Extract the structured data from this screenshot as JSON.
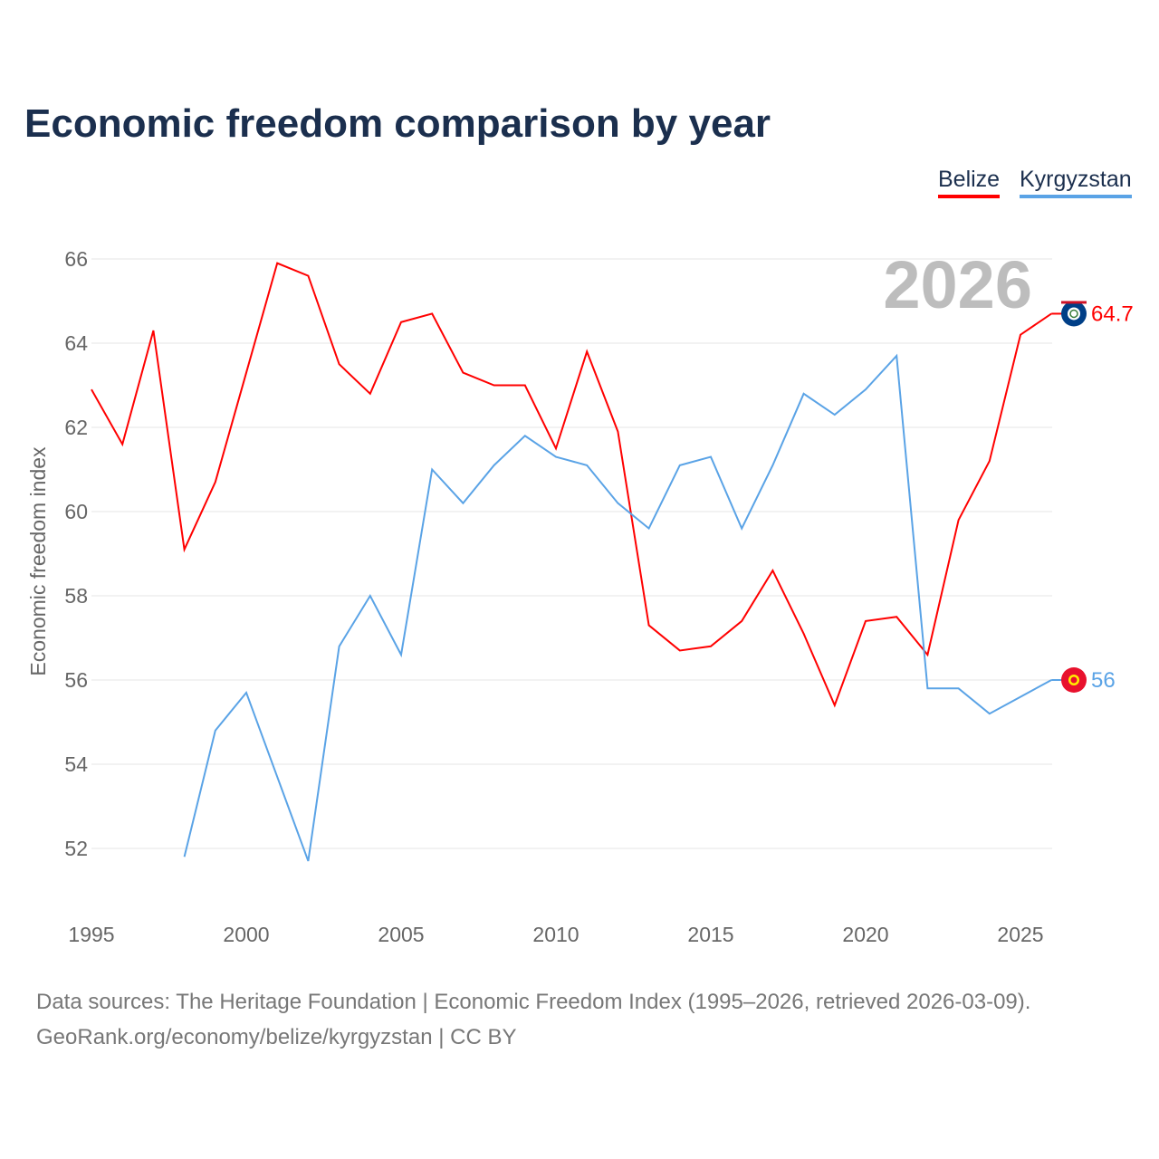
{
  "title": "Economic freedom comparison by year",
  "year_label": "2026",
  "footer": {
    "line1": "Data sources: The Heritage Foundation | Economic Freedom Index (1995–2026, retrieved 2026-03-09).",
    "line2": "GeoRank.org/economy/belize/kyrgyzstan | CC BY"
  },
  "chart_data": {
    "type": "line",
    "title": "Economic freedom comparison by year",
    "xlabel": "",
    "ylabel": "Economic freedom index",
    "xlim": [
      1995,
      2026
    ],
    "ylim": [
      50.8,
      67
    ],
    "xticks": [
      1995,
      2000,
      2005,
      2010,
      2015,
      2020,
      2025
    ],
    "yticks": [
      52,
      54,
      56,
      58,
      60,
      62,
      64,
      66
    ],
    "grid": true,
    "legend_position": "top-right",
    "series": [
      {
        "name": "Belize",
        "color": "#ff0000",
        "end_label": "64.7",
        "x": [
          1995,
          1996,
          1997,
          1998,
          1999,
          2000,
          2001,
          2002,
          2003,
          2004,
          2005,
          2006,
          2007,
          2008,
          2009,
          2010,
          2011,
          2012,
          2013,
          2014,
          2015,
          2016,
          2017,
          2018,
          2019,
          2020,
          2021,
          2022,
          2023,
          2024,
          2025,
          2026
        ],
        "values": [
          62.9,
          61.6,
          64.3,
          59.1,
          60.7,
          63.3,
          65.9,
          65.6,
          63.5,
          62.8,
          64.5,
          64.7,
          63.3,
          63.0,
          63.0,
          61.5,
          63.8,
          61.9,
          57.3,
          56.7,
          56.8,
          57.4,
          58.6,
          57.1,
          55.4,
          57.4,
          57.5,
          56.6,
          59.8,
          61.2,
          64.2,
          64.7
        ]
      },
      {
        "name": "Kyrgyzstan",
        "color": "#5aa3e6",
        "end_label": "56",
        "x": [
          1998,
          1999,
          2000,
          2001,
          2002,
          2003,
          2004,
          2005,
          2006,
          2007,
          2008,
          2009,
          2010,
          2011,
          2012,
          2013,
          2014,
          2015,
          2016,
          2017,
          2018,
          2019,
          2020,
          2021,
          2022,
          2023,
          2024,
          2025,
          2026
        ],
        "values": [
          51.8,
          54.8,
          55.7,
          53.7,
          51.7,
          56.8,
          58.0,
          56.6,
          61.0,
          60.2,
          61.1,
          61.8,
          61.3,
          61.1,
          60.2,
          59.6,
          61.1,
          61.3,
          59.6,
          61.1,
          62.8,
          62.3,
          62.9,
          63.7,
          55.8,
          55.8,
          55.2,
          55.6,
          56.0
        ]
      }
    ]
  }
}
